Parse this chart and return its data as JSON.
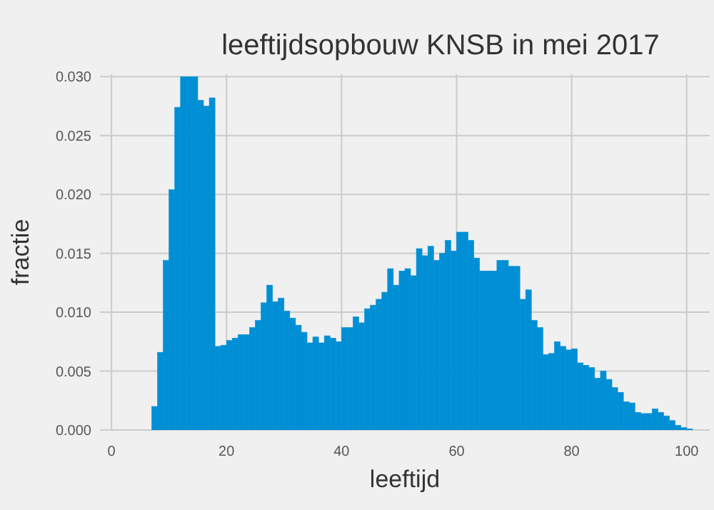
{
  "chart_data": {
    "type": "histogram",
    "title": "leeftijdsopbouw KNSB in mei 2017",
    "xlabel": "leeftijd",
    "ylabel": "fractie",
    "color": "#008fd5",
    "bins": [
      7,
      8,
      9,
      10,
      11,
      12,
      13,
      14,
      15,
      16,
      17,
      18,
      19,
      20,
      21,
      22,
      23,
      24,
      25,
      26,
      27,
      28,
      29,
      30,
      31,
      32,
      33,
      34,
      35,
      36,
      37,
      38,
      39,
      40,
      41,
      42,
      43,
      44,
      45,
      46,
      47,
      48,
      49,
      50,
      51,
      52,
      53,
      54,
      55,
      56,
      57,
      58,
      59,
      60,
      61,
      62,
      63,
      64,
      65,
      66,
      67,
      68,
      69,
      70,
      71,
      72,
      73,
      74,
      75,
      76,
      77,
      78,
      79,
      80,
      81,
      82,
      83,
      84,
      85,
      86,
      87,
      88,
      89,
      90,
      91,
      92,
      93,
      94,
      95,
      96,
      97,
      98,
      99,
      100,
      101
    ],
    "values": [
      0.002,
      0.0066,
      0.0144,
      0.0204,
      0.0274,
      0.03,
      0.03,
      0.03,
      0.028,
      0.0275,
      0.0282,
      0.0071,
      0.0072,
      0.0076,
      0.0078,
      0.0081,
      0.0081,
      0.0087,
      0.0093,
      0.0108,
      0.0123,
      0.0109,
      0.0112,
      0.0101,
      0.0095,
      0.0089,
      0.0083,
      0.0074,
      0.0079,
      0.0074,
      0.008,
      0.0078,
      0.0075,
      0.0087,
      0.0087,
      0.0096,
      0.0091,
      0.0103,
      0.0106,
      0.0111,
      0.0117,
      0.0137,
      0.0123,
      0.0135,
      0.0137,
      0.0131,
      0.0154,
      0.0148,
      0.0156,
      0.0144,
      0.015,
      0.0161,
      0.0152,
      0.0168,
      0.0168,
      0.0161,
      0.0146,
      0.0135,
      0.0135,
      0.0135,
      0.0144,
      0.0144,
      0.0139,
      0.0139,
      0.0111,
      0.0119,
      0.0093,
      0.0087,
      0.0064,
      0.0065,
      0.0075,
      0.0071,
      0.0068,
      0.0069,
      0.0057,
      0.0055,
      0.0053,
      0.0044,
      0.005,
      0.0043,
      0.0036,
      0.0032,
      0.0024,
      0.0023,
      0.0015,
      0.0014,
      0.0014,
      0.0018,
      0.0015,
      0.0012,
      0.0008,
      0.0004,
      0.0002,
      0.0001
    ],
    "xlim": [
      -2,
      104
    ],
    "ylim": [
      0,
      0.0302
    ],
    "xticks": [
      0,
      20,
      40,
      60,
      80,
      100
    ],
    "yticks": [
      {
        "value": 0,
        "label": "0.000"
      },
      {
        "value": 0.005,
        "label": "0.005"
      },
      {
        "value": 0.01,
        "label": "0.010"
      },
      {
        "value": 0.015,
        "label": "0.015"
      },
      {
        "value": 0.02,
        "label": "0.020"
      },
      {
        "value": 0.025,
        "label": "0.025"
      },
      {
        "value": 0.03,
        "label": "0.030"
      }
    ],
    "grid": true
  }
}
